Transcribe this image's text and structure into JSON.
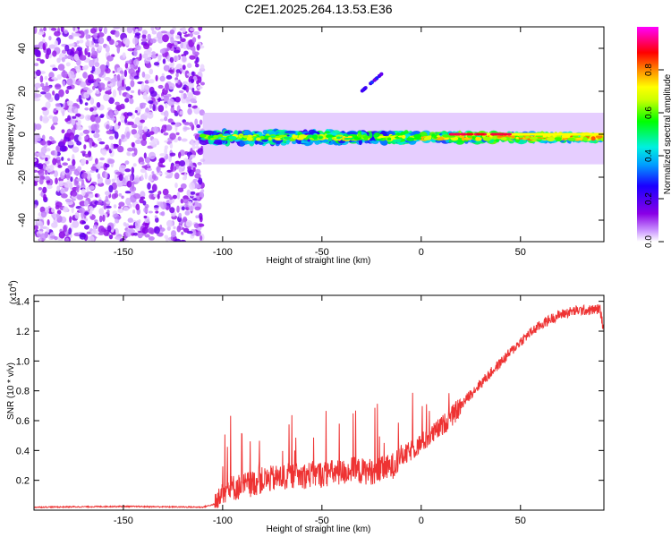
{
  "title": "C2E1.2025.264.13.53.E36",
  "chart_data": [
    {
      "type": "heatmap",
      "xlabel": "Height of straight line (km)",
      "ylabel": "Frequency (Hz)",
      "xlim": [
        -195,
        92
      ],
      "ylim": [
        -50,
        50
      ],
      "xticks": [
        -150,
        -100,
        -50,
        0,
        50
      ],
      "yticks": [
        -40,
        -20,
        0,
        20,
        40
      ],
      "xtick_labels": [
        "-150",
        "-100",
        "-50",
        "0",
        "50"
      ],
      "ytick_labels": [
        "-40",
        "-20",
        "0",
        "20",
        "40"
      ],
      "colorbar": {
        "label": "Normalized spectral amplitude",
        "range": [
          0,
          1
        ],
        "ticks": [
          0.0,
          0.2,
          0.4,
          0.6,
          0.8
        ],
        "tick_labels": [
          "0.0",
          "0.2",
          "0.4",
          "0.6",
          "0.8"
        ],
        "colors": [
          "#ffffff",
          "#cc99ff",
          "#8a00e6",
          "#1a00ff",
          "#00a0ff",
          "#00f0e0",
          "#00ff00",
          "#ccff00",
          "#ffff00",
          "#ff8800",
          "#ff0000",
          "#ff00ff"
        ]
      },
      "regions": [
        {
          "name": "noise",
          "x": [
            -195,
            -110
          ],
          "y": [
            -50,
            50
          ],
          "level": 0.1
        },
        {
          "name": "signal-band",
          "x": [
            -110,
            92
          ],
          "center_freq": [
            -3,
            -1
          ],
          "level": 0.6
        },
        {
          "name": "strong-tone",
          "x": [
            15,
            92
          ],
          "center_freq": [
            0,
            0
          ],
          "level": 0.95
        },
        {
          "name": "upper-streak",
          "x": [
            -30,
            -20
          ],
          "y": [
            20,
            28
          ],
          "level": 0.3
        }
      ]
    },
    {
      "type": "line",
      "xlabel": "Height of straight line (km)",
      "ylabel": "SNR (10 * v/v)",
      "scale_label": "(x10",
      "scale_exp": "4",
      "xlim": [
        -195,
        92
      ],
      "ylim": [
        0,
        14400
      ],
      "xticks": [
        -150,
        -100,
        -50,
        0,
        50
      ],
      "yticks": [
        2000,
        4000,
        6000,
        8000,
        10000,
        12000,
        14000
      ],
      "xtick_labels": [
        "-150",
        "-100",
        "-50",
        "0",
        "50"
      ],
      "ytick_labels": [
        "0.2",
        "0.4",
        "0.6",
        "0.8",
        "1.0",
        "1.2",
        "1.4"
      ],
      "series": [
        {
          "name": "SNR",
          "color": "#ee3333",
          "x": [
            -195,
            -150,
            -110,
            -104,
            -100,
            -95,
            -90,
            -85,
            -80,
            -75,
            -70,
            -65,
            -60,
            -55,
            -50,
            -45,
            -40,
            -35,
            -30,
            -25,
            -20,
            -15,
            -10,
            -5,
            0,
            5,
            10,
            15,
            20,
            25,
            30,
            35,
            40,
            45,
            50,
            55,
            60,
            65,
            70,
            75,
            80,
            85,
            90,
            92
          ],
          "values": [
            200,
            250,
            200,
            400,
            1300,
            1500,
            1600,
            1800,
            2000,
            2100,
            2200,
            2300,
            2300,
            2400,
            2400,
            2500,
            2500,
            2700,
            2600,
            2600,
            2700,
            2900,
            3500,
            4000,
            4500,
            5000,
            5600,
            6200,
            7000,
            7800,
            8500,
            9200,
            9900,
            10600,
            11300,
            11900,
            12400,
            12800,
            13100,
            13300,
            13400,
            13400,
            13500,
            12000
          ]
        }
      ]
    }
  ]
}
